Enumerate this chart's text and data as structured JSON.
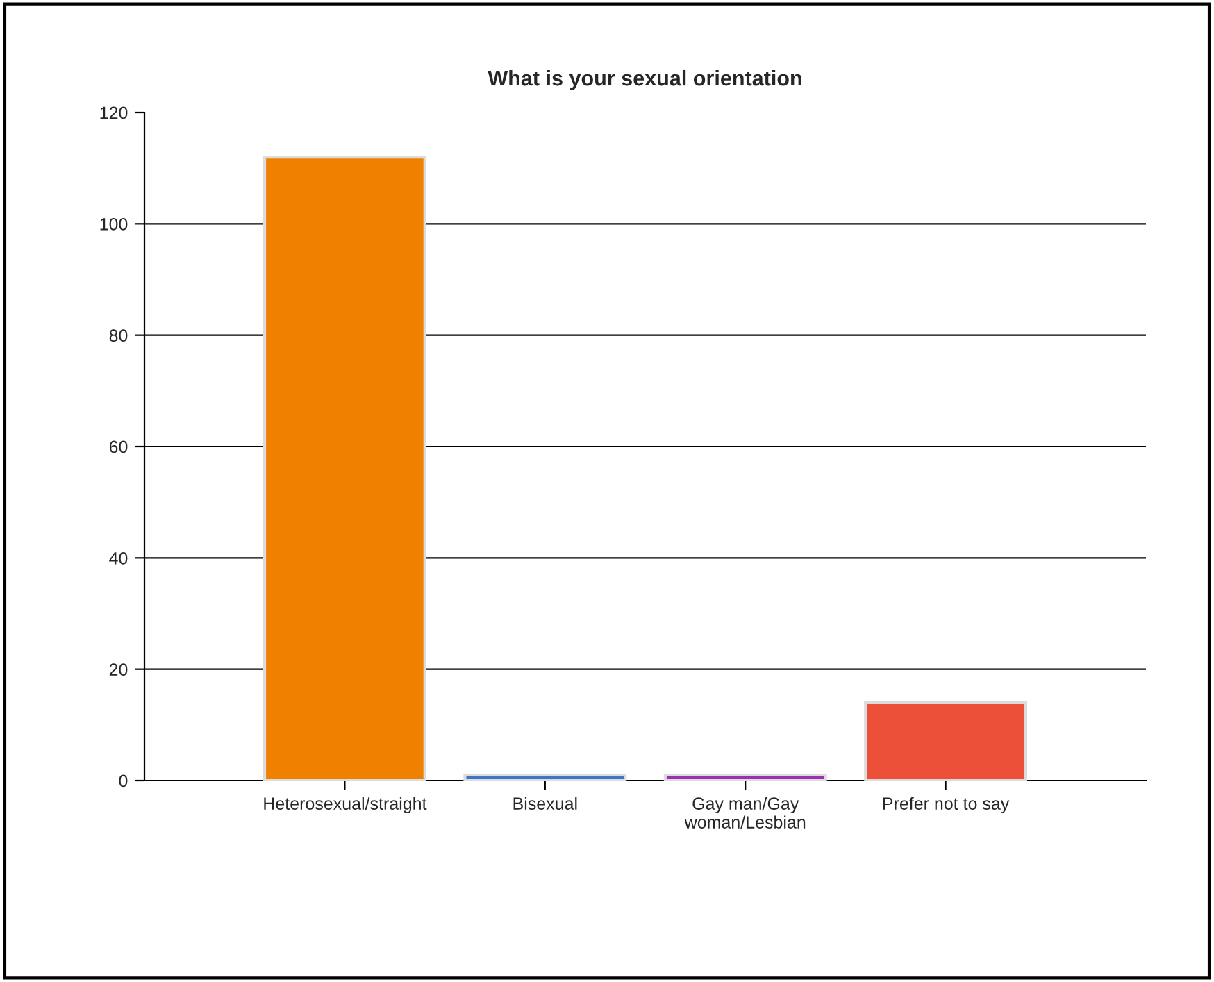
{
  "chart_data": {
    "type": "bar",
    "title": "What is your sexual orientation",
    "categories": [
      "Heterosexual/straight",
      "Bisexual",
      "Gay man/Gay\nwoman/Lesbian",
      "Prefer not to say"
    ],
    "values": [
      112,
      1,
      1,
      14
    ],
    "colors": [
      "#f08000",
      "#3f74c8",
      "#9b30b0",
      "#ec5038"
    ],
    "ylim": [
      0,
      120
    ],
    "yticks": [
      0,
      20,
      40,
      60,
      80,
      100,
      120
    ],
    "grid": "y",
    "legend": false
  }
}
